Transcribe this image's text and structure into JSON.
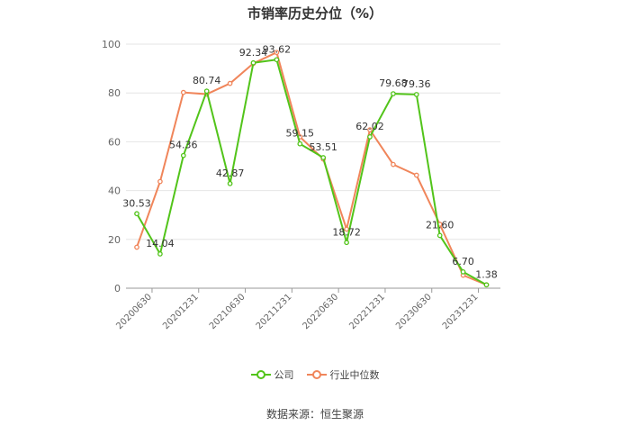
{
  "chart_data": {
    "type": "line",
    "title": "市销率历史分位（%）",
    "x_ticks": [
      "20200630",
      "20201231",
      "20210630",
      "20211231",
      "20220630",
      "20221231",
      "20230630",
      "20231231"
    ],
    "ylim": [
      0,
      100
    ],
    "y_ticks": [
      0,
      20,
      40,
      60,
      80,
      100
    ],
    "grid": true,
    "legend_position": "bottom",
    "series": [
      {
        "name": "公司",
        "color": "#52c41a",
        "values": [
          30.53,
          14.04,
          54.36,
          80.74,
          42.87,
          92.34,
          93.62,
          59.15,
          53.51,
          18.72,
          62.02,
          79.68,
          79.36,
          21.6,
          6.7,
          1.38
        ],
        "labels": [
          "30.53",
          "14.04",
          "54.36",
          "80.74",
          "42.87",
          "92.34",
          "93.62",
          "59.15",
          "53.51",
          "18.72",
          "62.02",
          "79.68",
          "79.36",
          "21.60",
          "6.70",
          "1.38"
        ]
      },
      {
        "name": "行业中位数",
        "color": "#f0855a",
        "values": [
          16.8,
          43.7,
          80.2,
          79.5,
          83.9,
          92.1,
          96.6,
          62.0,
          52.9,
          24.2,
          64.9,
          50.7,
          46.3,
          26.2,
          5.3,
          1.4
        ]
      }
    ]
  },
  "source_text": "数据来源：恒生聚源"
}
